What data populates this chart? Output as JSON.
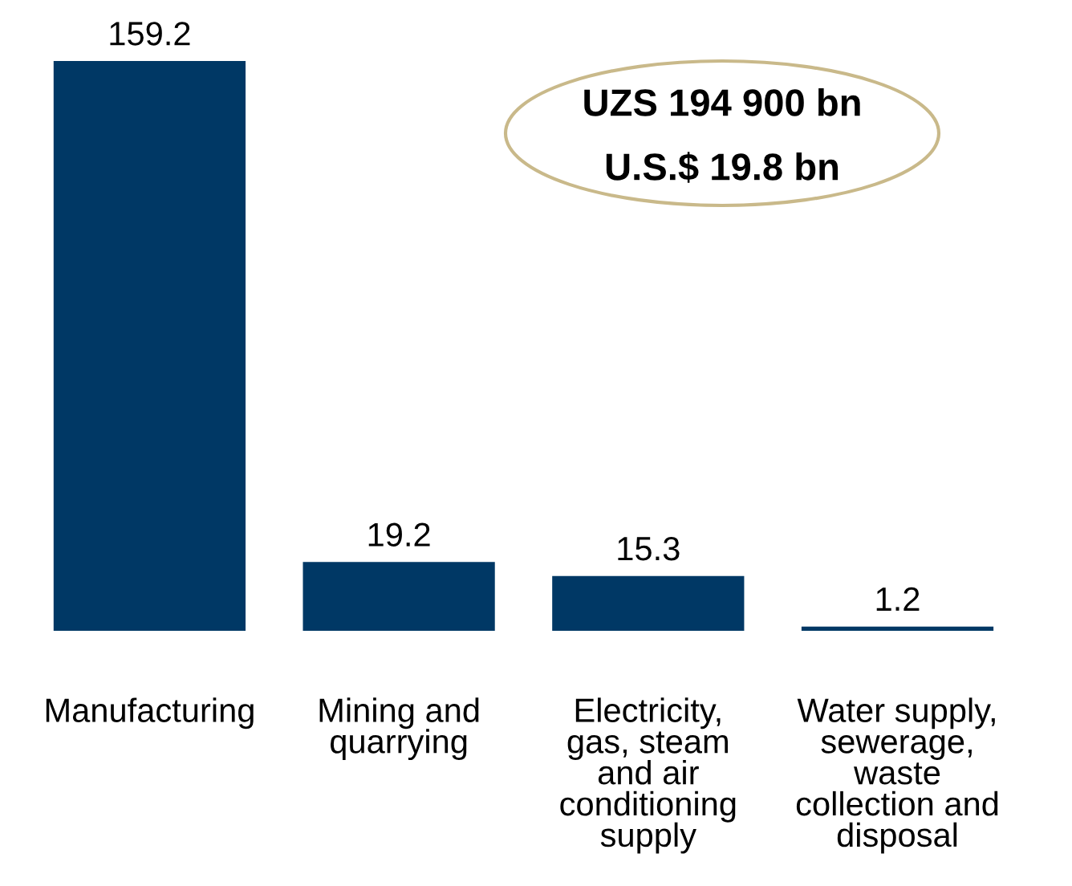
{
  "chart_data": {
    "type": "bar",
    "categories": [
      "Manufacturing",
      "Mining and\nquarrying",
      "Electricity,\ngas, steam\nand air\nconditioning\nsupply",
      "Water supply,\nsewerage,\nwaste\ncollection and\ndisposal"
    ],
    "values": [
      159.2,
      19.2,
      15.3,
      1.2
    ],
    "color": "#003865",
    "ylim": [
      0,
      159.2
    ],
    "data_labels": true,
    "annotations": [
      "UZS 194 900 bn",
      "U.S.$ 19.8 bn"
    ]
  }
}
